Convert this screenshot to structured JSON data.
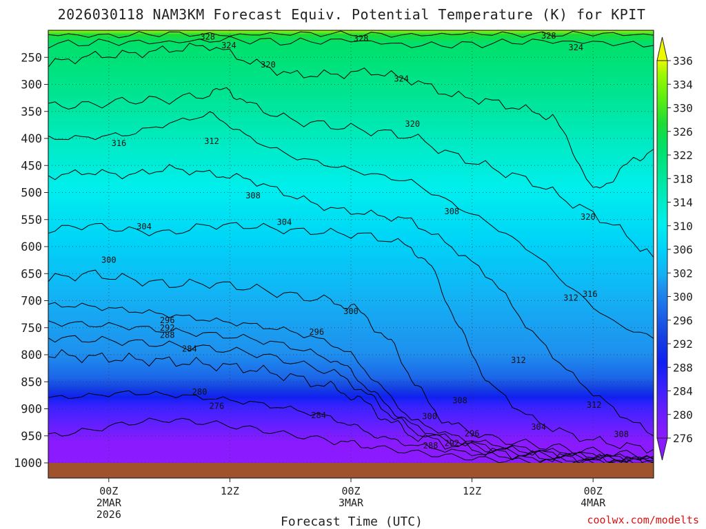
{
  "chart_data": {
    "type": "contour",
    "title": "2026030118 NAM3KM Forecast Equiv. Potential Temperature (K) for KPIT",
    "xlabel": "Forecast Time (UTC)",
    "ylabel": "Pressure (hPa)",
    "credit": "coolwx.com/modelts",
    "x_ticks": [
      {
        "hour": 6,
        "lines": [
          "00Z",
          "2MAR",
          "2026"
        ]
      },
      {
        "hour": 18,
        "lines": [
          "12Z"
        ]
      },
      {
        "hour": 30,
        "lines": [
          "00Z",
          "3MAR"
        ]
      },
      {
        "hour": 42,
        "lines": [
          "12Z"
        ]
      },
      {
        "hour": 54,
        "lines": [
          "00Z",
          "4MAR"
        ]
      }
    ],
    "x_range": [
      0,
      60
    ],
    "y_ticks": [
      "250",
      "300",
      "350",
      "400",
      "450",
      "500",
      "550",
      "600",
      "650",
      "700",
      "750",
      "800",
      "850",
      "900",
      "950",
      "1000"
    ],
    "y_range": [
      200,
      1000
    ],
    "colorbar": {
      "labels": [
        "336",
        "334",
        "330",
        "326",
        "322",
        "318",
        "314",
        "310",
        "306",
        "302",
        "300",
        "296",
        "292",
        "288",
        "284",
        "280",
        "276"
      ],
      "stops": [
        {
          "value": 276,
          "color": "#8c1aff"
        },
        {
          "value": 280,
          "color": "#6a1fff"
        },
        {
          "value": 284,
          "color": "#3a22ff"
        },
        {
          "value": 288,
          "color": "#1020f0"
        },
        {
          "value": 292,
          "color": "#1540e0"
        },
        {
          "value": 296,
          "color": "#1c66e8"
        },
        {
          "value": 300,
          "color": "#1e90ee"
        },
        {
          "value": 302,
          "color": "#14b0f4"
        },
        {
          "value": 306,
          "color": "#00d2f8"
        },
        {
          "value": 310,
          "color": "#00eeee"
        },
        {
          "value": 314,
          "color": "#00ebc2"
        },
        {
          "value": 318,
          "color": "#00e596"
        },
        {
          "value": 322,
          "color": "#00e06a"
        },
        {
          "value": 326,
          "color": "#1edc36"
        },
        {
          "value": 330,
          "color": "#5cee10"
        },
        {
          "value": 334,
          "color": "#a2f800"
        },
        {
          "value": 336,
          "color": "#ecf800"
        }
      ]
    },
    "contours": [
      {
        "value": 328,
        "pts": [
          [
            0,
            208
          ],
          [
            6,
            210
          ],
          [
            12,
            206
          ],
          [
            18,
            209
          ],
          [
            24,
            206
          ],
          [
            30,
            207
          ],
          [
            36,
            209
          ],
          [
            42,
            206
          ],
          [
            48,
            208
          ],
          [
            54,
            206
          ],
          [
            60,
            209
          ]
        ]
      },
      {
        "value": 324,
        "pts": [
          [
            0,
            226
          ],
          [
            6,
            222
          ],
          [
            12,
            222
          ],
          [
            18,
            217
          ],
          [
            24,
            222
          ],
          [
            30,
            218
          ],
          [
            36,
            228
          ],
          [
            42,
            226
          ],
          [
            48,
            220
          ],
          [
            54,
            222
          ],
          [
            60,
            228
          ]
        ]
      },
      {
        "value": 320,
        "pts": [
          [
            0,
            262
          ],
          [
            4,
            248
          ],
          [
            8,
            244
          ],
          [
            12,
            236
          ],
          [
            16,
            228
          ],
          [
            20,
            258
          ],
          [
            24,
            282
          ],
          [
            28,
            282
          ],
          [
            32,
            276
          ],
          [
            36,
            292
          ],
          [
            40,
            320
          ],
          [
            44,
            332
          ],
          [
            48,
            350
          ],
          [
            50,
            360
          ],
          [
            52,
            420
          ],
          [
            54,
            500
          ],
          [
            56,
            472
          ],
          [
            58,
            440
          ],
          [
            60,
            420
          ]
        ]
      },
      {
        "value": 316,
        "pts": [
          [
            0,
            340
          ],
          [
            4,
            338
          ],
          [
            8,
            330
          ],
          [
            12,
            328
          ],
          [
            16,
            318
          ],
          [
            18,
            310
          ],
          [
            20,
            338
          ],
          [
            24,
            366
          ],
          [
            28,
            376
          ],
          [
            32,
            386
          ],
          [
            36,
            396
          ],
          [
            40,
            430
          ],
          [
            44,
            455
          ],
          [
            48,
            480
          ],
          [
            52,
            520
          ],
          [
            56,
            560
          ],
          [
            60,
            620
          ]
        ]
      },
      {
        "value": 312,
        "pts": [
          [
            0,
            400
          ],
          [
            4,
            398
          ],
          [
            8,
            392
          ],
          [
            12,
            372
          ],
          [
            16,
            355
          ],
          [
            18,
            375
          ],
          [
            20,
            400
          ],
          [
            24,
            432
          ],
          [
            28,
            450
          ],
          [
            32,
            466
          ],
          [
            36,
            480
          ],
          [
            40,
            520
          ],
          [
            44,
            560
          ],
          [
            48,
            610
          ],
          [
            52,
            680
          ],
          [
            56,
            740
          ],
          [
            60,
            770
          ]
        ]
      },
      {
        "value": 308,
        "pts": [
          [
            0,
            470
          ],
          [
            4,
            462
          ],
          [
            8,
            468
          ],
          [
            12,
            455
          ],
          [
            16,
            465
          ],
          [
            18,
            470
          ],
          [
            20,
            476
          ],
          [
            24,
            505
          ],
          [
            28,
            530
          ],
          [
            32,
            540
          ],
          [
            36,
            552
          ],
          [
            40,
            600
          ],
          [
            44,
            660
          ],
          [
            48,
            760
          ],
          [
            52,
            840
          ],
          [
            56,
            900
          ],
          [
            60,
            950
          ]
        ]
      },
      {
        "value": 304,
        "pts": [
          [
            0,
            570
          ],
          [
            4,
            560
          ],
          [
            8,
            570
          ],
          [
            12,
            575
          ],
          [
            16,
            560
          ],
          [
            20,
            562
          ],
          [
            24,
            570
          ],
          [
            28,
            574
          ],
          [
            32,
            580
          ],
          [
            36,
            600
          ],
          [
            38,
            640
          ],
          [
            40,
            720
          ],
          [
            42,
            800
          ],
          [
            44,
            860
          ],
          [
            48,
            920
          ],
          [
            52,
            950
          ],
          [
            56,
            965
          ],
          [
            60,
            975
          ]
        ]
      },
      {
        "value": 300,
        "pts": [
          [
            0,
            660
          ],
          [
            4,
            650
          ],
          [
            8,
            660
          ],
          [
            12,
            670
          ],
          [
            16,
            668
          ],
          [
            20,
            676
          ],
          [
            24,
            690
          ],
          [
            28,
            700
          ],
          [
            30,
            710
          ],
          [
            32,
            740
          ],
          [
            34,
            780
          ],
          [
            36,
            840
          ],
          [
            38,
            900
          ],
          [
            40,
            930
          ],
          [
            44,
            955
          ],
          [
            48,
            966
          ],
          [
            52,
            975
          ],
          [
            56,
            982
          ],
          [
            60,
            988
          ]
        ]
      },
      {
        "value": 296,
        "pts": [
          [
            0,
            708
          ],
          [
            4,
            710
          ],
          [
            8,
            718
          ],
          [
            12,
            726
          ],
          [
            16,
            736
          ],
          [
            20,
            744
          ],
          [
            24,
            756
          ],
          [
            28,
            778
          ],
          [
            30,
            800
          ],
          [
            32,
            840
          ],
          [
            34,
            880
          ],
          [
            36,
            920
          ],
          [
            40,
            950
          ],
          [
            44,
            966
          ],
          [
            48,
            975
          ],
          [
            52,
            982
          ],
          [
            56,
            988
          ],
          [
            60,
            992
          ]
        ]
      },
      {
        "value": 292,
        "pts": [
          [
            0,
            740
          ],
          [
            4,
            744
          ],
          [
            8,
            748
          ],
          [
            12,
            756
          ],
          [
            16,
            762
          ],
          [
            20,
            770
          ],
          [
            24,
            784
          ],
          [
            28,
            808
          ],
          [
            30,
            830
          ],
          [
            32,
            868
          ],
          [
            34,
            900
          ],
          [
            36,
            930
          ],
          [
            40,
            958
          ],
          [
            44,
            972
          ],
          [
            48,
            980
          ],
          [
            52,
            986
          ],
          [
            56,
            990
          ],
          [
            60,
            994
          ]
        ]
      },
      {
        "value": 288,
        "pts": [
          [
            0,
            768
          ],
          [
            4,
            772
          ],
          [
            8,
            776
          ],
          [
            12,
            782
          ],
          [
            16,
            788
          ],
          [
            20,
            796
          ],
          [
            24,
            812
          ],
          [
            28,
            832
          ],
          [
            30,
            850
          ],
          [
            32,
            880
          ],
          [
            34,
            910
          ],
          [
            36,
            940
          ],
          [
            40,
            962
          ],
          [
            44,
            976
          ],
          [
            48,
            984
          ],
          [
            52,
            988
          ],
          [
            56,
            992
          ],
          [
            60,
            996
          ]
        ]
      },
      {
        "value": 284,
        "pts": [
          [
            0,
            800
          ],
          [
            4,
            804
          ],
          [
            8,
            808
          ],
          [
            12,
            812
          ],
          [
            16,
            818
          ],
          [
            20,
            826
          ],
          [
            24,
            840
          ],
          [
            28,
            860
          ],
          [
            30,
            874
          ],
          [
            32,
            898
          ],
          [
            34,
            925
          ],
          [
            36,
            948
          ],
          [
            40,
            968
          ],
          [
            44,
            980
          ],
          [
            48,
            988
          ],
          [
            52,
            992
          ],
          [
            56,
            995
          ],
          [
            60,
            998
          ]
        ]
      },
      {
        "value": 280,
        "pts": [
          [
            0,
            880
          ],
          [
            4,
            876
          ],
          [
            8,
            870
          ],
          [
            12,
            874
          ],
          [
            16,
            880
          ],
          [
            20,
            888
          ],
          [
            24,
            900
          ],
          [
            28,
            916
          ],
          [
            30,
            930
          ],
          [
            32,
            946
          ],
          [
            34,
            958
          ],
          [
            36,
            966
          ],
          [
            40,
            978
          ],
          [
            44,
            986
          ],
          [
            48,
            992
          ],
          [
            52,
            995
          ],
          [
            56,
            997
          ],
          [
            60,
            999
          ]
        ]
      },
      {
        "value": 276,
        "pts": [
          [
            0,
            950
          ],
          [
            4,
            940
          ],
          [
            8,
            926
          ],
          [
            12,
            920
          ],
          [
            16,
            926
          ],
          [
            20,
            936
          ],
          [
            24,
            948
          ],
          [
            28,
            958
          ],
          [
            30,
            964
          ],
          [
            32,
            970
          ],
          [
            36,
            980
          ],
          [
            40,
            988
          ],
          [
            44,
            994
          ],
          [
            48,
            997
          ],
          [
            52,
            998
          ],
          [
            56,
            999
          ],
          [
            60,
            999.5
          ]
        ]
      }
    ],
    "contour_labels": [
      {
        "text": "328",
        "x": 15.8,
        "y": 212
      },
      {
        "text": "324",
        "x": 17.9,
        "y": 228
      },
      {
        "text": "328",
        "x": 31.0,
        "y": 215
      },
      {
        "text": "328",
        "x": 49.6,
        "y": 210
      },
      {
        "text": "324",
        "x": 52.3,
        "y": 232
      },
      {
        "text": "320",
        "x": 21.8,
        "y": 264
      },
      {
        "text": "324",
        "x": 35.0,
        "y": 290
      },
      {
        "text": "320",
        "x": 36.1,
        "y": 373
      },
      {
        "text": "316",
        "x": 7.0,
        "y": 409
      },
      {
        "text": "312",
        "x": 16.2,
        "y": 405
      },
      {
        "text": "308",
        "x": 20.3,
        "y": 506
      },
      {
        "text": "304",
        "x": 9.5,
        "y": 563
      },
      {
        "text": "304",
        "x": 23.4,
        "y": 555
      },
      {
        "text": "308",
        "x": 40.0,
        "y": 535
      },
      {
        "text": "320",
        "x": 53.5,
        "y": 545
      },
      {
        "text": "300",
        "x": 6.0,
        "y": 625
      },
      {
        "text": "316",
        "x": 53.7,
        "y": 688
      },
      {
        "text": "312",
        "x": 51.8,
        "y": 695
      },
      {
        "text": "300",
        "x": 30.0,
        "y": 720
      },
      {
        "text": "296",
        "x": 11.8,
        "y": 736
      },
      {
        "text": "292",
        "x": 11.8,
        "y": 750
      },
      {
        "text": "288",
        "x": 11.8,
        "y": 764
      },
      {
        "text": "296",
        "x": 26.6,
        "y": 758
      },
      {
        "text": "284",
        "x": 14.0,
        "y": 789
      },
      {
        "text": "312",
        "x": 46.6,
        "y": 810
      },
      {
        "text": "280",
        "x": 15.0,
        "y": 869
      },
      {
        "text": "308",
        "x": 40.8,
        "y": 885
      },
      {
        "text": "312",
        "x": 54.1,
        "y": 893
      },
      {
        "text": "276",
        "x": 16.7,
        "y": 895
      },
      {
        "text": "284",
        "x": 26.8,
        "y": 912
      },
      {
        "text": "300",
        "x": 37.8,
        "y": 914
      },
      {
        "text": "304",
        "x": 48.6,
        "y": 934
      },
      {
        "text": "296",
        "x": 42.0,
        "y": 946
      },
      {
        "text": "308",
        "x": 56.8,
        "y": 947
      },
      {
        "text": "292",
        "x": 40.0,
        "y": 964
      },
      {
        "text": "288",
        "x": 37.9,
        "y": 968
      }
    ],
    "grid": true,
    "colorbar_position": "right"
  }
}
